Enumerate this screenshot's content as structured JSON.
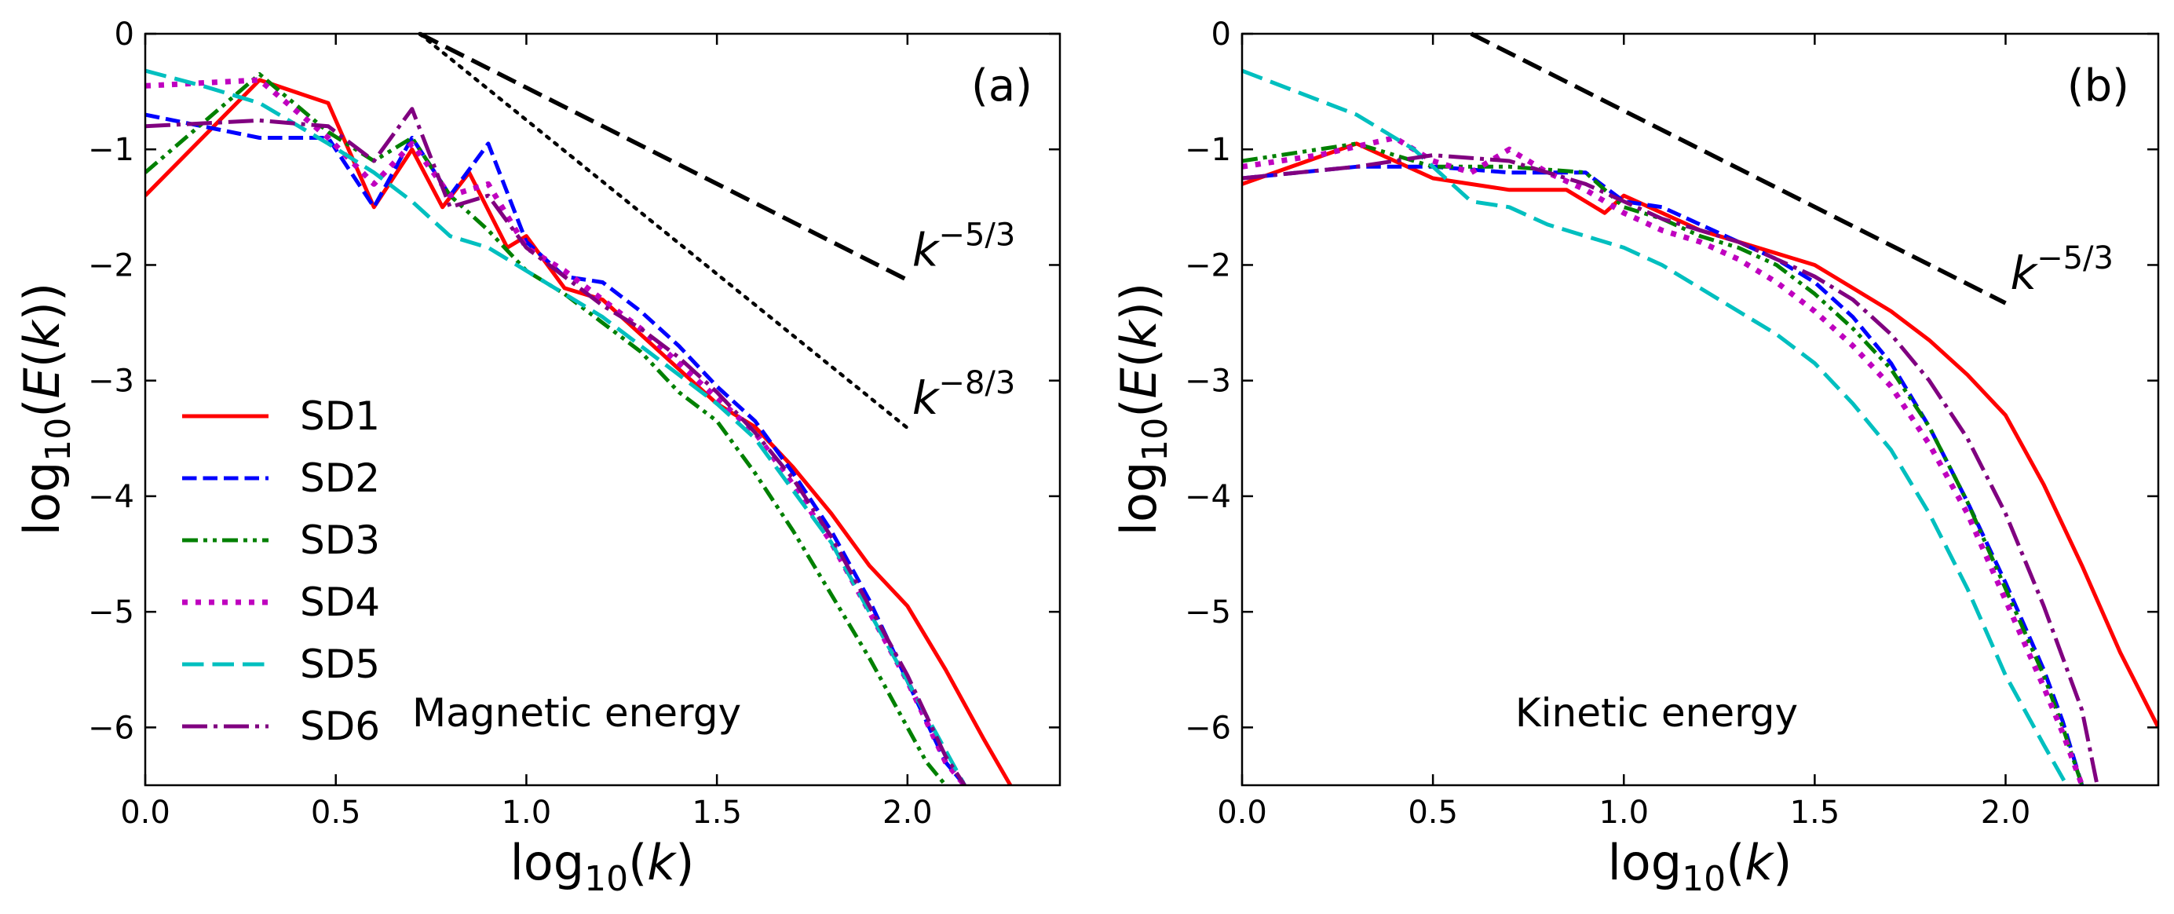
{
  "colors": {
    "SD1": "#ff0000",
    "SD2": "#0000ff",
    "SD3": "#008000",
    "SD4": "#bf00bf",
    "SD5": "#00bfbf",
    "SD6": "#800080",
    "ref": "#000000"
  },
  "legend": [
    {
      "key": "SD1",
      "label": "SD1",
      "style": "solid"
    },
    {
      "key": "SD2",
      "label": "SD2",
      "style": "dashed"
    },
    {
      "key": "SD3",
      "label": "SD3",
      "style": "dashdotdot"
    },
    {
      "key": "SD4",
      "label": "SD4",
      "style": "dotted"
    },
    {
      "key": "SD5",
      "label": "SD5",
      "style": "longdash"
    },
    {
      "key": "SD6",
      "label": "SD6",
      "style": "dashdot"
    }
  ],
  "chart_data": [
    {
      "type": "line",
      "panel_label": "(a)",
      "annotation": "Magnetic energy",
      "xlabel": "log10(k)",
      "ylabel": "log10(E(k))",
      "xlim": [
        0,
        2.4
      ],
      "ylim": [
        -6.5,
        0
      ],
      "xticks": [
        "0.0",
        "0.5",
        "1.0",
        "1.5",
        "2.0"
      ],
      "xtick_values": [
        0,
        0.5,
        1.0,
        1.5,
        2.0
      ],
      "yticks": [
        "0",
        "−1",
        "−2",
        "−3",
        "−4",
        "−5",
        "−6"
      ],
      "ytick_values": [
        0,
        -1,
        -2,
        -3,
        -4,
        -5,
        -6
      ],
      "reference_lines": [
        {
          "label": "k^{−5/3}",
          "base": "k",
          "exp": "−5/3",
          "style": "dashed",
          "x": [
            0.72,
            2.0
          ],
          "y": [
            0.0,
            -2.13
          ]
        },
        {
          "label": "k^{−8/3}",
          "base": "k",
          "exp": "−8/3",
          "style": "dotted",
          "x": [
            0.72,
            2.0
          ],
          "y": [
            0.0,
            -3.41
          ]
        }
      ],
      "series": [
        {
          "name": "SD1",
          "x": [
            0,
            0.3,
            0.48,
            0.6,
            0.7,
            0.78,
            0.85,
            0.95,
            1.0,
            1.1,
            1.2,
            1.3,
            1.4,
            1.5,
            1.6,
            1.7,
            1.8,
            1.9,
            2.0,
            2.1,
            2.2,
            2.27
          ],
          "y": [
            -1.4,
            -0.4,
            -0.6,
            -1.5,
            -1.0,
            -1.5,
            -1.2,
            -1.85,
            -1.75,
            -2.2,
            -2.3,
            -2.6,
            -2.9,
            -3.2,
            -3.4,
            -3.75,
            -4.15,
            -4.6,
            -4.95,
            -5.5,
            -6.1,
            -6.5
          ]
        },
        {
          "name": "SD2",
          "x": [
            0,
            0.3,
            0.48,
            0.6,
            0.7,
            0.8,
            0.9,
            1.0,
            1.1,
            1.2,
            1.3,
            1.4,
            1.5,
            1.6,
            1.7,
            1.8,
            1.9,
            2.0,
            2.05,
            2.1,
            2.15
          ],
          "y": [
            -0.7,
            -0.9,
            -0.9,
            -1.5,
            -0.9,
            -1.4,
            -0.95,
            -1.8,
            -2.1,
            -2.15,
            -2.4,
            -2.7,
            -3.05,
            -3.35,
            -3.8,
            -4.3,
            -4.9,
            -5.6,
            -5.95,
            -6.3,
            -6.5
          ]
        },
        {
          "name": "SD3",
          "x": [
            0,
            0.3,
            0.48,
            0.6,
            0.7,
            0.8,
            0.9,
            1.0,
            1.1,
            1.2,
            1.3,
            1.4,
            1.5,
            1.6,
            1.7,
            1.8,
            1.9,
            1.95,
            2.0,
            2.05,
            2.1
          ],
          "y": [
            -1.2,
            -0.35,
            -0.85,
            -1.1,
            -0.9,
            -1.4,
            -1.7,
            -2.05,
            -2.25,
            -2.5,
            -2.75,
            -3.1,
            -3.35,
            -3.8,
            -4.3,
            -4.85,
            -5.4,
            -5.7,
            -6.0,
            -6.3,
            -6.5
          ]
        },
        {
          "name": "SD4",
          "x": [
            0,
            0.3,
            0.48,
            0.6,
            0.7,
            0.8,
            0.9,
            1.0,
            1.1,
            1.2,
            1.3,
            1.4,
            1.5,
            1.6,
            1.7,
            1.8,
            1.9,
            2.0,
            2.05,
            2.1,
            2.15
          ],
          "y": [
            -0.45,
            -0.4,
            -0.9,
            -1.3,
            -0.95,
            -1.4,
            -1.3,
            -1.85,
            -2.05,
            -2.3,
            -2.55,
            -2.85,
            -3.15,
            -3.45,
            -3.9,
            -4.4,
            -5.0,
            -5.6,
            -5.95,
            -6.3,
            -6.5
          ]
        },
        {
          "name": "SD5",
          "x": [
            0,
            0.15,
            0.3,
            0.48,
            0.6,
            0.7,
            0.8,
            0.9,
            1.0,
            1.1,
            1.2,
            1.3,
            1.4,
            1.5,
            1.6,
            1.7,
            1.8,
            1.9,
            2.0,
            2.1,
            2.15
          ],
          "y": [
            -0.32,
            -0.45,
            -0.6,
            -0.95,
            -1.2,
            -1.45,
            -1.75,
            -1.85,
            -2.05,
            -2.25,
            -2.45,
            -2.7,
            -2.95,
            -3.2,
            -3.5,
            -3.95,
            -4.4,
            -5.0,
            -5.6,
            -6.2,
            -6.5
          ]
        },
        {
          "name": "SD6",
          "x": [
            0,
            0.3,
            0.48,
            0.6,
            0.7,
            0.8,
            0.9,
            1.0,
            1.1,
            1.2,
            1.3,
            1.4,
            1.5,
            1.6,
            1.7,
            1.8,
            1.9,
            2.0,
            2.05,
            2.1,
            2.15
          ],
          "y": [
            -0.8,
            -0.75,
            -0.8,
            -1.1,
            -0.65,
            -1.5,
            -1.4,
            -1.85,
            -2.1,
            -2.35,
            -2.55,
            -2.8,
            -3.1,
            -3.45,
            -3.85,
            -4.35,
            -4.95,
            -5.55,
            -5.9,
            -6.25,
            -6.5
          ]
        }
      ]
    },
    {
      "type": "line",
      "panel_label": "(b)",
      "annotation": "Kinetic energy",
      "xlabel": "log10(k)",
      "ylabel": "log10(E(k))",
      "xlim": [
        0,
        2.4
      ],
      "ylim": [
        -6.5,
        0
      ],
      "xticks": [
        "0.0",
        "0.5",
        "1.0",
        "1.5",
        "2.0"
      ],
      "xtick_values": [
        0,
        0.5,
        1.0,
        1.5,
        2.0
      ],
      "yticks": [
        "0",
        "−1",
        "−2",
        "−3",
        "−4",
        "−5",
        "−6"
      ],
      "ytick_values": [
        0,
        -1,
        -2,
        -3,
        -4,
        -5,
        -6
      ],
      "reference_lines": [
        {
          "label": "k^{−5/3}",
          "base": "k",
          "exp": "−5/3",
          "style": "dashed",
          "x": [
            0.6,
            2.0
          ],
          "y": [
            0.0,
            -2.33
          ]
        }
      ],
      "series": [
        {
          "name": "SD1",
          "x": [
            0,
            0.3,
            0.5,
            0.7,
            0.85,
            0.95,
            1.0,
            1.2,
            1.4,
            1.5,
            1.6,
            1.7,
            1.8,
            1.9,
            2.0,
            2.1,
            2.2,
            2.3,
            2.4
          ],
          "y": [
            -1.3,
            -0.95,
            -1.25,
            -1.35,
            -1.35,
            -1.55,
            -1.4,
            -1.7,
            -1.9,
            -2.0,
            -2.2,
            -2.4,
            -2.65,
            -2.95,
            -3.3,
            -3.9,
            -4.6,
            -5.35,
            -6.0
          ]
        },
        {
          "name": "SD2",
          "x": [
            0,
            0.3,
            0.5,
            0.7,
            0.9,
            1.0,
            1.1,
            1.2,
            1.3,
            1.4,
            1.5,
            1.6,
            1.7,
            1.8,
            1.9,
            2.0,
            2.1,
            2.15,
            2.2
          ],
          "y": [
            -1.25,
            -1.15,
            -1.15,
            -1.2,
            -1.2,
            -1.45,
            -1.5,
            -1.65,
            -1.8,
            -1.95,
            -2.15,
            -2.45,
            -2.85,
            -3.4,
            -4.05,
            -4.75,
            -5.5,
            -5.95,
            -6.5
          ]
        },
        {
          "name": "SD3",
          "x": [
            0,
            0.3,
            0.5,
            0.7,
            0.9,
            1.0,
            1.1,
            1.2,
            1.3,
            1.4,
            1.5,
            1.6,
            1.7,
            1.8,
            1.9,
            2.0,
            2.1,
            2.15,
            2.2
          ],
          "y": [
            -1.1,
            -0.95,
            -1.15,
            -1.15,
            -1.2,
            -1.5,
            -1.6,
            -1.75,
            -1.85,
            -2.0,
            -2.25,
            -2.55,
            -2.9,
            -3.4,
            -4.05,
            -4.8,
            -5.55,
            -6.0,
            -6.5
          ]
        },
        {
          "name": "SD4",
          "x": [
            0,
            0.2,
            0.4,
            0.5,
            0.6,
            0.7,
            0.8,
            0.9,
            1.0,
            1.1,
            1.2,
            1.3,
            1.4,
            1.5,
            1.6,
            1.7,
            1.8,
            1.9,
            2.0,
            2.1,
            2.15,
            2.2
          ],
          "y": [
            -1.15,
            -1.05,
            -0.9,
            -1.1,
            -1.2,
            -1.0,
            -1.2,
            -1.35,
            -1.55,
            -1.7,
            -1.8,
            -1.95,
            -2.15,
            -2.4,
            -2.7,
            -3.05,
            -3.55,
            -4.15,
            -4.9,
            -5.65,
            -6.05,
            -6.5
          ]
        },
        {
          "name": "SD5",
          "x": [
            0,
            0.3,
            0.45,
            0.6,
            0.7,
            0.8,
            0.9,
            1.0,
            1.1,
            1.2,
            1.3,
            1.4,
            1.5,
            1.6,
            1.7,
            1.8,
            1.9,
            2.0,
            2.1,
            2.16
          ],
          "y": [
            -0.32,
            -0.7,
            -1.0,
            -1.45,
            -1.5,
            -1.65,
            -1.75,
            -1.85,
            -2.0,
            -2.2,
            -2.4,
            -2.6,
            -2.85,
            -3.2,
            -3.6,
            -4.15,
            -4.8,
            -5.55,
            -6.15,
            -6.5
          ]
        },
        {
          "name": "SD6",
          "x": [
            0,
            0.3,
            0.5,
            0.7,
            0.9,
            1.0,
            1.1,
            1.2,
            1.3,
            1.4,
            1.5,
            1.6,
            1.7,
            1.8,
            1.9,
            2.0,
            2.1,
            2.2,
            2.24
          ],
          "y": [
            -1.25,
            -1.15,
            -1.05,
            -1.1,
            -1.3,
            -1.45,
            -1.6,
            -1.7,
            -1.8,
            -1.95,
            -2.1,
            -2.3,
            -2.6,
            -3.0,
            -3.5,
            -4.15,
            -4.95,
            -5.85,
            -6.5
          ]
        }
      ]
    }
  ]
}
